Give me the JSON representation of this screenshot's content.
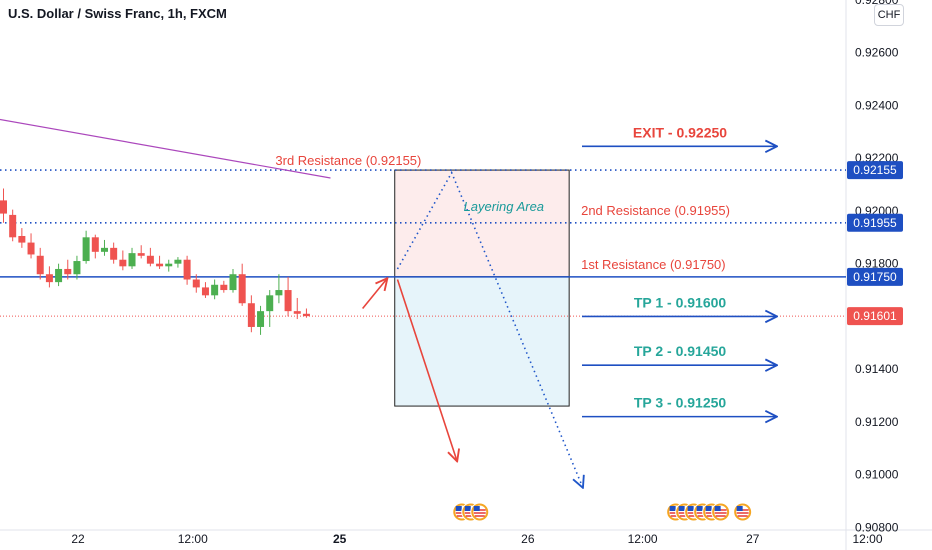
{
  "header": {
    "title": "U.S. Dollar / Swiss Franc, 1h, FXCM",
    "currency_button": "CHF"
  },
  "colors": {
    "up": "#4caf50",
    "down": "#ef5350",
    "resistance_text": "#e8453c",
    "tp_text": "#26a69a",
    "blue": "#1e4fc2",
    "arrow_blue": "#1f56c9",
    "arrow_red": "#e8453c",
    "ma": "#ab47bc",
    "tag_blue": "#1e4fc2",
    "tag_red": "#ef5350",
    "layering": "#1a9a9a"
  },
  "chart_data": {
    "type": "candlestick",
    "y_axis": {
      "labels": [
        "0.92800",
        "0.92600",
        "0.92400",
        "0.92200",
        "0.92000",
        "0.91800",
        "0.91600",
        "0.91400",
        "0.91200",
        "0.91000",
        "0.90800"
      ],
      "range": [
        0.9079,
        0.928
      ]
    },
    "x_axis": {
      "ticks": [
        {
          "label": "22",
          "bar": 8.5
        },
        {
          "label": "12:00",
          "bar": 21
        },
        {
          "label": "25",
          "bar": 37,
          "bold": true
        },
        {
          "label": "26",
          "bar": 57.5
        },
        {
          "label": "12:00",
          "bar": 70
        },
        {
          "label": "27",
          "bar": 82
        },
        {
          "label": "12:00",
          "bar": 94.5
        }
      ]
    },
    "candles": [
      {
        "o": 0.9204,
        "h": 0.92085,
        "l": 0.91955,
        "c": 0.9199
      },
      {
        "o": 0.91985,
        "h": 0.92005,
        "l": 0.91885,
        "c": 0.919
      },
      {
        "o": 0.91905,
        "h": 0.91935,
        "l": 0.9186,
        "c": 0.9188
      },
      {
        "o": 0.9188,
        "h": 0.91915,
        "l": 0.9182,
        "c": 0.91835
      },
      {
        "o": 0.9183,
        "h": 0.9186,
        "l": 0.9174,
        "c": 0.9176
      },
      {
        "o": 0.9176,
        "h": 0.9179,
        "l": 0.9171,
        "c": 0.9173
      },
      {
        "o": 0.9173,
        "h": 0.918,
        "l": 0.91715,
        "c": 0.9178
      },
      {
        "o": 0.9178,
        "h": 0.91815,
        "l": 0.9174,
        "c": 0.9176
      },
      {
        "o": 0.9176,
        "h": 0.9183,
        "l": 0.9174,
        "c": 0.9181
      },
      {
        "o": 0.9181,
        "h": 0.91925,
        "l": 0.918,
        "c": 0.919
      },
      {
        "o": 0.919,
        "h": 0.9191,
        "l": 0.9182,
        "c": 0.91845
      },
      {
        "o": 0.91845,
        "h": 0.9189,
        "l": 0.9183,
        "c": 0.9186
      },
      {
        "o": 0.9186,
        "h": 0.9188,
        "l": 0.918,
        "c": 0.91815
      },
      {
        "o": 0.91815,
        "h": 0.9185,
        "l": 0.91775,
        "c": 0.9179
      },
      {
        "o": 0.9179,
        "h": 0.9186,
        "l": 0.9178,
        "c": 0.9184
      },
      {
        "o": 0.9184,
        "h": 0.9187,
        "l": 0.9182,
        "c": 0.9183
      },
      {
        "o": 0.9183,
        "h": 0.9186,
        "l": 0.9179,
        "c": 0.918
      },
      {
        "o": 0.918,
        "h": 0.9183,
        "l": 0.9178,
        "c": 0.9179
      },
      {
        "o": 0.9179,
        "h": 0.91815,
        "l": 0.9177,
        "c": 0.918
      },
      {
        "o": 0.918,
        "h": 0.91825,
        "l": 0.91785,
        "c": 0.91815
      },
      {
        "o": 0.91815,
        "h": 0.9183,
        "l": 0.9172,
        "c": 0.9174
      },
      {
        "o": 0.9174,
        "h": 0.9176,
        "l": 0.9169,
        "c": 0.9171
      },
      {
        "o": 0.9171,
        "h": 0.9173,
        "l": 0.9167,
        "c": 0.9168
      },
      {
        "o": 0.9168,
        "h": 0.9174,
        "l": 0.91665,
        "c": 0.9172
      },
      {
        "o": 0.9172,
        "h": 0.91735,
        "l": 0.9169,
        "c": 0.917
      },
      {
        "o": 0.917,
        "h": 0.9178,
        "l": 0.9169,
        "c": 0.9176
      },
      {
        "o": 0.9176,
        "h": 0.918,
        "l": 0.9164,
        "c": 0.9165
      },
      {
        "o": 0.9165,
        "h": 0.9168,
        "l": 0.9154,
        "c": 0.9156
      },
      {
        "o": 0.9156,
        "h": 0.9164,
        "l": 0.9153,
        "c": 0.9162
      },
      {
        "o": 0.9162,
        "h": 0.917,
        "l": 0.9156,
        "c": 0.9168
      },
      {
        "o": 0.9168,
        "h": 0.9176,
        "l": 0.9165,
        "c": 0.917
      },
      {
        "o": 0.917,
        "h": 0.9175,
        "l": 0.916,
        "c": 0.9162
      },
      {
        "o": 0.9162,
        "h": 0.9167,
        "l": 0.9159,
        "c": 0.9161
      },
      {
        "o": 0.9161,
        "h": 0.9163,
        "l": 0.91595,
        "c": 0.91601
      }
    ],
    "moving_average": [
      [
        -0.5,
        0.9235
      ],
      [
        36,
        0.92125
      ]
    ],
    "horizontal_levels": [
      {
        "price": 0.92155,
        "style": "dotted",
        "tag": "0.92155",
        "tag_color": "blue"
      },
      {
        "price": 0.91955,
        "style": "dotted",
        "tag": "0.91955",
        "tag_color": "blue"
      },
      {
        "price": 0.9175,
        "style": "solid",
        "tag": "0.91750",
        "tag_color": "blue"
      },
      {
        "price": 0.91601,
        "style": "dotted-red",
        "tag": "0.91601",
        "tag_color": "red"
      }
    ],
    "boxes": [
      {
        "x0": 43,
        "x1": 62,
        "top": 0.92155,
        "bottom": 0.9175,
        "fill": "#fdecec"
      },
      {
        "x0": 43,
        "x1": 62,
        "top": 0.9175,
        "bottom": 0.9126,
        "fill": "#e6f4fa"
      }
    ],
    "annotations": [
      {
        "text": "3rd Resistance  (0.92155)",
        "bar": 30,
        "price": 0.92175,
        "color": "resistance",
        "align": "start"
      },
      {
        "text": "2nd Resistance (0.91955)",
        "bar": 63.3,
        "price": 0.91985,
        "color": "resistance",
        "align": "start"
      },
      {
        "text": "1st Resistance (0.91750)",
        "bar": 63.3,
        "price": 0.9178,
        "color": "resistance",
        "align": "start"
      },
      {
        "text": "Layering Area",
        "bar": 50.5,
        "price": 0.92,
        "color": "layering",
        "align": "start",
        "italic": true
      }
    ],
    "targets": [
      {
        "label": "EXIT - 0.92250",
        "price": 0.92245,
        "color": "resistance"
      },
      {
        "label": "TP 1 - 0.91600",
        "price": 0.916,
        "color": "tp"
      },
      {
        "label": "TP 2 - 0.91450",
        "price": 0.91415,
        "color": "tp"
      },
      {
        "label": "TP 3 - 0.91250",
        "price": 0.9122,
        "color": "tp"
      }
    ],
    "path_arrows": [
      {
        "style": "solid",
        "color": "red",
        "points": [
          [
            39.5,
            0.9163
          ],
          [
            42.2,
            0.91745
          ]
        ]
      },
      {
        "style": "solid",
        "color": "red",
        "points": [
          [
            43.3,
            0.9174
          ],
          [
            49.8,
            0.9105
          ]
        ]
      },
      {
        "style": "dotted",
        "color": "blue",
        "points": [
          [
            43.3,
            0.9178
          ],
          [
            49.2,
            0.92145
          ],
          [
            63.5,
            0.9095
          ]
        ]
      }
    ],
    "event_icon_groups": [
      {
        "bar": 50.3,
        "count": 3
      },
      {
        "bar": 73.6,
        "count": 6
      },
      {
        "bar": 80.9,
        "count": 1
      }
    ]
  }
}
